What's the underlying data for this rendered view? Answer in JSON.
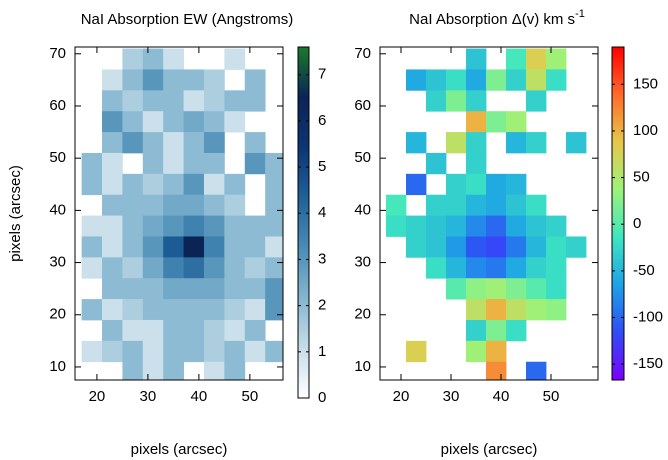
{
  "chart_data": [
    {
      "type": "heatmap",
      "title": "NaI Absorption EW (Angstroms)",
      "xlabel": "pixels (arcsec)",
      "ylabel": "pixels (arcsec)",
      "xlim": [
        15.7,
        56.5
      ],
      "ylim": [
        7.5,
        71.3
      ],
      "xticks": [
        20,
        30,
        40,
        50
      ],
      "yticks": [
        10,
        20,
        30,
        40,
        50,
        60,
        70
      ],
      "x_edges": [
        17,
        21,
        25,
        29,
        33,
        37,
        41,
        45,
        49,
        53,
        57
      ],
      "y_edges": [
        71,
        67,
        63,
        59,
        55,
        51,
        47,
        43,
        39,
        35,
        31,
        27,
        23,
        19,
        15,
        11,
        7
      ],
      "z": [
        [
          null,
          null,
          1.5,
          2,
          1,
          null,
          null,
          1,
          null,
          null
        ],
        [
          null,
          1,
          2,
          3,
          2,
          2,
          1.5,
          null,
          2,
          null
        ],
        [
          null,
          2,
          1.5,
          2,
          2,
          1,
          1.5,
          2,
          2,
          null
        ],
        [
          null,
          3,
          2,
          1,
          2,
          2.5,
          2,
          1,
          null,
          null
        ],
        [
          null,
          2,
          3,
          2,
          1,
          2,
          3,
          null,
          2,
          null
        ],
        [
          2,
          1,
          null,
          2,
          1,
          2,
          2,
          null,
          3,
          2
        ],
        [
          2,
          1,
          2,
          1.5,
          2,
          3,
          1,
          2,
          null,
          2
        ],
        [
          null,
          2,
          2,
          2,
          2.5,
          2.5,
          2,
          1.5,
          null,
          2
        ],
        [
          1,
          1,
          2,
          2.5,
          3,
          3.5,
          3,
          2,
          2,
          2
        ],
        [
          2,
          1,
          2,
          3,
          4.5,
          6.5,
          3.5,
          2,
          2,
          1
        ],
        [
          1,
          2,
          1.5,
          2.5,
          3.5,
          4,
          3,
          2,
          1.5,
          2
        ],
        [
          null,
          2,
          2,
          2,
          2.5,
          2.5,
          2.5,
          2,
          2,
          3
        ],
        [
          2,
          1,
          1.5,
          2,
          2,
          2,
          2,
          1.5,
          1,
          3
        ],
        [
          null,
          2,
          1,
          1,
          2,
          2,
          1.5,
          1,
          2,
          null
        ],
        [
          1,
          1.5,
          2,
          1,
          2,
          2,
          1.5,
          2,
          1,
          2
        ],
        [
          null,
          null,
          2,
          1,
          2,
          null,
          1,
          2,
          null,
          null
        ]
      ],
      "clim": [
        0,
        7.6
      ],
      "cticks": [
        0,
        1,
        2,
        3,
        4,
        5,
        6,
        7
      ],
      "colormap": [
        "#ffffff",
        "#c6dde9",
        "#84b5d0",
        "#4a8cb5",
        "#1f6198",
        "#0c3574",
        "#0b2456",
        "#1a7a2c"
      ]
    },
    {
      "type": "heatmap",
      "title": "NaI Absorption Δ(v) km s",
      "title_superscript": "-1",
      "xlabel": "pixels (arcsec)",
      "xlim": [
        15.8,
        59.4
      ],
      "ylim": [
        7.5,
        71.3
      ],
      "xticks": [
        20,
        30,
        40,
        50
      ],
      "yticks": [
        10,
        20,
        30,
        40,
        50,
        60,
        70
      ],
      "x_edges": [
        17,
        21,
        25,
        29,
        33,
        37,
        41,
        45,
        49,
        53,
        57
      ],
      "y_edges": [
        71,
        67,
        63,
        59,
        55,
        51,
        47,
        43,
        39,
        35,
        31,
        27,
        23,
        19,
        15,
        11,
        7
      ],
      "z": [
        [
          null,
          null,
          null,
          null,
          -40,
          null,
          -10,
          80,
          40,
          null
        ],
        [
          null,
          -60,
          -40,
          -20,
          -60,
          20,
          -30,
          60,
          -20,
          null
        ],
        [
          null,
          null,
          -30,
          20,
          -30,
          null,
          null,
          -30,
          null,
          null
        ],
        [
          null,
          null,
          null,
          null,
          100,
          20,
          40,
          null,
          null,
          null
        ],
        [
          null,
          -50,
          null,
          60,
          -30,
          null,
          -50,
          -30,
          null,
          -40
        ],
        [
          null,
          null,
          -40,
          null,
          -30,
          null,
          null,
          null,
          null,
          null
        ],
        [
          null,
          -100,
          null,
          -30,
          -20,
          -60,
          -50,
          null,
          null,
          null
        ],
        [
          -10,
          null,
          -30,
          -30,
          -50,
          -60,
          -40,
          -20,
          null,
          null
        ],
        [
          -20,
          -30,
          -40,
          -50,
          -80,
          -100,
          -60,
          -40,
          -30,
          null
        ],
        [
          null,
          -30,
          -40,
          -70,
          -110,
          -120,
          -90,
          -50,
          -20,
          -30
        ],
        [
          null,
          null,
          -20,
          -50,
          -80,
          -90,
          -60,
          -30,
          -20,
          null
        ],
        [
          null,
          null,
          null,
          0,
          30,
          40,
          20,
          0,
          -20,
          null
        ],
        [
          null,
          null,
          null,
          null,
          60,
          100,
          60,
          40,
          30,
          null
        ],
        [
          null,
          null,
          null,
          null,
          -30,
          20,
          -20,
          null,
          null,
          null
        ],
        [
          null,
          80,
          null,
          null,
          40,
          100,
          null,
          null,
          null,
          null
        ],
        [
          null,
          null,
          null,
          null,
          null,
          120,
          null,
          -100,
          null,
          null
        ]
      ],
      "clim": [
        -167,
        190
      ],
      "cticks": [
        -150,
        -100,
        -50,
        0,
        50,
        100,
        150
      ],
      "colormap": [
        "#7a00ff",
        "#2f4df5",
        "#1ea2e6",
        "#3ee6c0",
        "#9cf27a",
        "#e6c84a",
        "#ff6a2a",
        "#ff0000"
      ]
    }
  ]
}
